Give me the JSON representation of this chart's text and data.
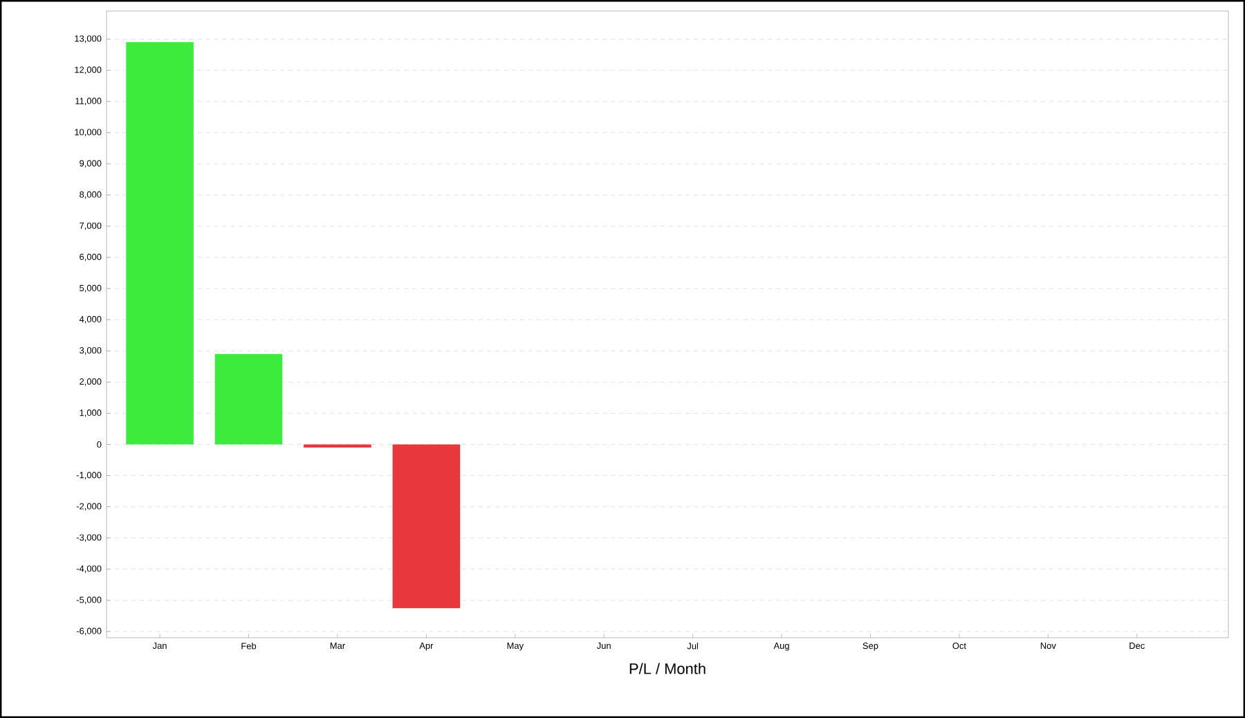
{
  "chart_data": {
    "type": "bar",
    "xlabel": "P/L / Month",
    "categories": [
      "Jan",
      "Feb",
      "Mar",
      "Apr",
      "May",
      "Jun",
      "Jul",
      "Aug",
      "Sep",
      "Oct",
      "Nov",
      "Dec"
    ],
    "values": [
      12900,
      2900,
      -100,
      -5250,
      null,
      null,
      null,
      null,
      null,
      null,
      null,
      null
    ],
    "colors": [
      "#3deb3d",
      "#3deb3d",
      "#e8383d",
      "#e8383d",
      "#3deb3d",
      "#3deb3d",
      "#3deb3d",
      "#3deb3d",
      "#3deb3d",
      "#3deb3d",
      "#3deb3d",
      "#3deb3d"
    ],
    "ylim": [
      -6200,
      13900
    ],
    "yticks": [
      {
        "value": -6000,
        "label": "-6,000"
      },
      {
        "value": -5000,
        "label": "-5,000"
      },
      {
        "value": -4000,
        "label": "-4,000"
      },
      {
        "value": -3000,
        "label": "-3,000"
      },
      {
        "value": -2000,
        "label": "-2,000"
      },
      {
        "value": -1000,
        "label": "-1,000"
      },
      0,
      {
        "value": 1000,
        "label": "1,000"
      },
      {
        "value": 2000,
        "label": "2,000"
      },
      {
        "value": 3000,
        "label": "3,000"
      },
      {
        "value": 4000,
        "label": "4,000"
      },
      {
        "value": 5000,
        "label": "5,000"
      },
      {
        "value": 6000,
        "label": "6,000"
      },
      {
        "value": 7000,
        "label": "7,000"
      },
      {
        "value": 8000,
        "label": "8,000"
      },
      {
        "value": 9000,
        "label": "9,000"
      },
      {
        "value": 10000,
        "label": "10,000"
      },
      {
        "value": 11000,
        "label": "11,000"
      },
      {
        "value": 12000,
        "label": "12,000"
      },
      {
        "value": 13000,
        "label": "13,000"
      }
    ],
    "grid": "y"
  }
}
